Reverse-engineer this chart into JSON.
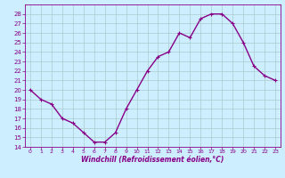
{
  "x": [
    0,
    1,
    2,
    3,
    4,
    5,
    6,
    7,
    8,
    9,
    10,
    11,
    12,
    13,
    14,
    15,
    16,
    17,
    18,
    19,
    20,
    21,
    22,
    23
  ],
  "y": [
    20.0,
    19.0,
    18.5,
    17.0,
    16.5,
    15.5,
    14.5,
    14.5,
    15.5,
    18.0,
    20.0,
    22.0,
    23.5,
    24.0,
    26.0,
    25.5,
    27.5,
    28.0,
    28.0,
    27.0,
    25.0,
    22.5,
    21.5,
    21.0
  ],
  "ylim": [
    14,
    29
  ],
  "xlim": [
    -0.5,
    23.5
  ],
  "yticks": [
    14,
    15,
    16,
    17,
    18,
    19,
    20,
    21,
    22,
    23,
    24,
    25,
    26,
    27,
    28
  ],
  "xticks": [
    0,
    1,
    2,
    3,
    4,
    5,
    6,
    7,
    8,
    9,
    10,
    11,
    12,
    13,
    14,
    15,
    16,
    17,
    18,
    19,
    20,
    21,
    22,
    23
  ],
  "xlabel": "Windchill (Refroidissement éolien,°C)",
  "line_color": "#880088",
  "marker_color": "#880088",
  "bg_color": "#cceeff",
  "grid_color": "#aacccc",
  "xlabel_color": "#880088",
  "tick_color": "#880088",
  "marker_size": 2.5,
  "line_width": 1.0
}
